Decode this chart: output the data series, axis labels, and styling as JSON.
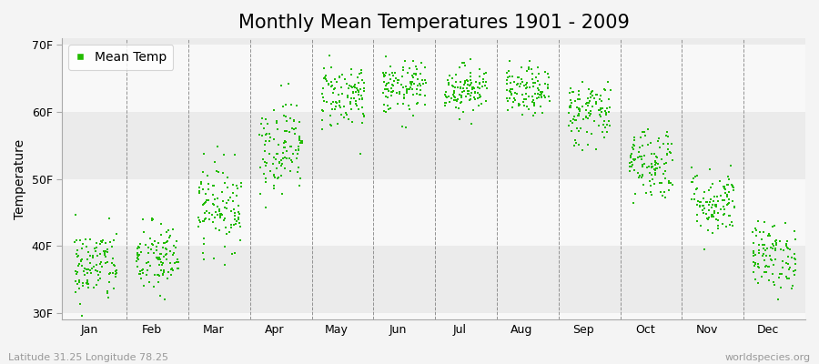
{
  "title": "Monthly Mean Temperatures 1901 - 2009",
  "ylabel": "Temperature",
  "xlabel_labels": [
    "Jan",
    "Feb",
    "Mar",
    "Apr",
    "May",
    "Jun",
    "Jul",
    "Aug",
    "Sep",
    "Oct",
    "Nov",
    "Dec"
  ],
  "ytick_labels": [
    "30F",
    "40F",
    "50F",
    "60F",
    "70F"
  ],
  "ytick_values": [
    30,
    40,
    50,
    60,
    70
  ],
  "ylim": [
    29,
    71
  ],
  "legend_label": "Mean Temp",
  "dot_color": "#22bb00",
  "dot_size": 3,
  "background_color": "#f4f4f4",
  "plot_bg_color": "#f8f8f8",
  "band_color": "#ebebeb",
  "title_fontsize": 15,
  "axis_fontsize": 10,
  "tick_fontsize": 9,
  "footer_left": "Latitude 31.25 Longitude 78.25",
  "footer_right": "worldspecies.org",
  "monthly_means": [
    37.0,
    38.0,
    46.0,
    55.0,
    62.5,
    63.5,
    63.5,
    63.0,
    60.0,
    52.5,
    46.5,
    38.5
  ],
  "monthly_stds": [
    2.8,
    2.8,
    3.2,
    3.5,
    2.5,
    2.0,
    1.8,
    1.8,
    2.5,
    2.8,
    2.5,
    2.5
  ],
  "n_years": 109,
  "seed": 42
}
